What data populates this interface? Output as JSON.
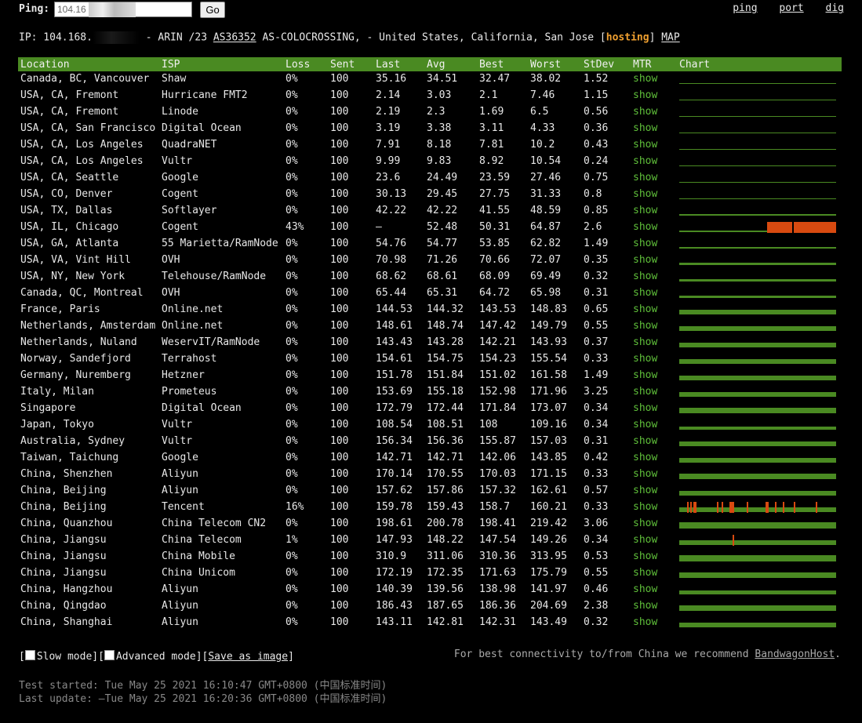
{
  "colors": {
    "bar": "#4a8a22",
    "loss": "#d84a10",
    "mtr": "#5fbf3a",
    "hosting": "#f0a030"
  },
  "top": {
    "ping_label": "Ping:",
    "ping_value": "104.16",
    "go_label": "Go",
    "links": [
      "ping",
      "port",
      "dig"
    ]
  },
  "ipinfo": {
    "prefix": "IP: 104.168.",
    "mid": " - ARIN /23 ",
    "asn": "AS36352",
    "rest": " AS-COLOCROSSING, - United States, California, San Jose [",
    "hosting": "hosting",
    "close": "] ",
    "map": "MAP"
  },
  "table": {
    "headers": [
      "Location",
      "ISP",
      "Loss",
      "Sent",
      "Last",
      "Avg",
      "Best",
      "Worst",
      "StDev",
      "MTR",
      "Chart"
    ],
    "mtr_label": "show",
    "rows": [
      {
        "loc": "Canada, BC, Vancouver",
        "isp": "Shaw",
        "loss": "0%",
        "sent": "100",
        "last": "35.16",
        "avg": "34.51",
        "best": "32.47",
        "worst": "38.02",
        "std": "1.52",
        "fill": 0.08,
        "spikes": []
      },
      {
        "loc": "USA, CA, Fremont",
        "isp": "Hurricane FMT2",
        "loss": "0%",
        "sent": "100",
        "last": "2.14",
        "avg": "3.03",
        "best": "2.1",
        "worst": "7.46",
        "std": "1.15",
        "fill": 0.02,
        "spikes": []
      },
      {
        "loc": "USA, CA, Fremont",
        "isp": "Linode",
        "loss": "0%",
        "sent": "100",
        "last": "2.19",
        "avg": "2.3",
        "best": "1.69",
        "worst": "6.5",
        "std": "0.56",
        "fill": 0.02,
        "spikes": []
      },
      {
        "loc": "USA, CA, San Francisco",
        "isp": "Digital Ocean",
        "loss": "0%",
        "sent": "100",
        "last": "3.19",
        "avg": "3.38",
        "best": "3.11",
        "worst": "4.33",
        "std": "0.36",
        "fill": 0.02,
        "spikes": []
      },
      {
        "loc": "USA, CA, Los Angeles",
        "isp": "QuadraNET",
        "loss": "0%",
        "sent": "100",
        "last": "7.91",
        "avg": "8.18",
        "best": "7.81",
        "worst": "10.2",
        "std": "0.43",
        "fill": 0.04,
        "spikes": []
      },
      {
        "loc": "USA, CA, Los Angeles",
        "isp": "Vultr",
        "loss": "0%",
        "sent": "100",
        "last": "9.99",
        "avg": "9.83",
        "best": "8.92",
        "worst": "10.54",
        "std": "0.24",
        "fill": 0.05,
        "spikes": []
      },
      {
        "loc": "USA, CA, Seattle",
        "isp": "Google",
        "loss": "0%",
        "sent": "100",
        "last": "23.6",
        "avg": "24.49",
        "best": "23.59",
        "worst": "27.46",
        "std": "0.75",
        "fill": 0.12,
        "spikes": []
      },
      {
        "loc": "USA, CO, Denver",
        "isp": "Cogent",
        "loss": "0%",
        "sent": "100",
        "last": "30.13",
        "avg": "29.45",
        "best": "27.75",
        "worst": "31.33",
        "std": "0.8",
        "fill": 0.14,
        "spikes": []
      },
      {
        "loc": "USA, TX, Dallas",
        "isp": "Softlayer",
        "loss": "0%",
        "sent": "100",
        "last": "42.22",
        "avg": "42.22",
        "best": "41.55",
        "worst": "48.59",
        "std": "0.85",
        "fill": 0.2,
        "spikes": []
      },
      {
        "loc": "USA, IL, Chicago",
        "isp": "Cogent",
        "loss": "43%",
        "sent": "100",
        "last": "–",
        "avg": "52.48",
        "best": "50.31",
        "worst": "64.87",
        "std": "2.6",
        "fill": 0.2,
        "spikes": [],
        "lossblock": [
          0.56,
          1.0
        ]
      },
      {
        "loc": "USA, GA, Atlanta",
        "isp": "55 Marietta/RamNode",
        "loss": "0%",
        "sent": "100",
        "last": "54.76",
        "avg": "54.77",
        "best": "53.85",
        "worst": "62.82",
        "std": "1.49",
        "fill": 0.26,
        "spikes": []
      },
      {
        "loc": "USA, VA, Vint Hill",
        "isp": "OVH",
        "loss": "0%",
        "sent": "100",
        "last": "70.98",
        "avg": "71.26",
        "best": "70.66",
        "worst": "72.07",
        "std": "0.35",
        "fill": 0.34,
        "spikes": []
      },
      {
        "loc": "USA, NY, New York",
        "isp": "Telehouse/RamNode",
        "loss": "0%",
        "sent": "100",
        "last": "68.62",
        "avg": "68.61",
        "best": "68.09",
        "worst": "69.49",
        "std": "0.32",
        "fill": 0.33,
        "spikes": []
      },
      {
        "loc": "Canada, QC, Montreal",
        "isp": "OVH",
        "loss": "0%",
        "sent": "100",
        "last": "65.44",
        "avg": "65.31",
        "best": "64.72",
        "worst": "65.98",
        "std": "0.31",
        "fill": 0.32,
        "spikes": []
      },
      {
        "loc": "France, Paris",
        "isp": "Online.net",
        "loss": "0%",
        "sent": "100",
        "last": "144.53",
        "avg": "144.32",
        "best": "143.53",
        "worst": "148.83",
        "std": "0.65",
        "fill": 0.7,
        "spikes": []
      },
      {
        "loc": "Netherlands, Amsterdam",
        "isp": "Online.net",
        "loss": "0%",
        "sent": "100",
        "last": "148.61",
        "avg": "148.74",
        "best": "147.42",
        "worst": "149.79",
        "std": "0.55",
        "fill": 0.72,
        "spikes": []
      },
      {
        "loc": "Netherlands, Nuland",
        "isp": "WeservIT/RamNode",
        "loss": "0%",
        "sent": "100",
        "last": "143.43",
        "avg": "143.28",
        "best": "142.21",
        "worst": "143.93",
        "std": "0.37",
        "fill": 0.7,
        "spikes": []
      },
      {
        "loc": "Norway, Sandefjord",
        "isp": "Terrahost",
        "loss": "0%",
        "sent": "100",
        "last": "154.61",
        "avg": "154.75",
        "best": "154.23",
        "worst": "155.54",
        "std": "0.33",
        "fill": 0.75,
        "spikes": []
      },
      {
        "loc": "Germany, Nuremberg",
        "isp": "Hetzner",
        "loss": "0%",
        "sent": "100",
        "last": "151.78",
        "avg": "151.84",
        "best": "151.02",
        "worst": "161.58",
        "std": "1.49",
        "fill": 0.74,
        "spikes": []
      },
      {
        "loc": "Italy, Milan",
        "isp": "Prometeus",
        "loss": "0%",
        "sent": "100",
        "last": "153.69",
        "avg": "155.18",
        "best": "152.98",
        "worst": "171.96",
        "std": "3.25",
        "fill": 0.75,
        "spikes": []
      },
      {
        "loc": "Singapore",
        "isp": "Digital Ocean",
        "loss": "0%",
        "sent": "100",
        "last": "172.79",
        "avg": "172.44",
        "best": "171.84",
        "worst": "173.07",
        "std": "0.34",
        "fill": 0.84,
        "spikes": []
      },
      {
        "loc": "Japan, Tokyo",
        "isp": "Vultr",
        "loss": "0%",
        "sent": "100",
        "last": "108.54",
        "avg": "108.51",
        "best": "108",
        "worst": "109.16",
        "std": "0.34",
        "fill": 0.53,
        "spikes": []
      },
      {
        "loc": "Australia, Sydney",
        "isp": "Vultr",
        "loss": "0%",
        "sent": "100",
        "last": "156.34",
        "avg": "156.36",
        "best": "155.87",
        "worst": "157.03",
        "std": "0.31",
        "fill": 0.76,
        "spikes": []
      },
      {
        "loc": "Taiwan, Taichung",
        "isp": "Google",
        "loss": "0%",
        "sent": "100",
        "last": "142.71",
        "avg": "142.71",
        "best": "142.06",
        "worst": "143.85",
        "std": "0.42",
        "fill": 0.7,
        "spikes": []
      },
      {
        "loc": "China, Shenzhen",
        "isp": "Aliyun",
        "loss": "0%",
        "sent": "100",
        "last": "170.14",
        "avg": "170.55",
        "best": "170.03",
        "worst": "171.15",
        "std": "0.33",
        "fill": 0.83,
        "spikes": []
      },
      {
        "loc": "China, Beijing",
        "isp": "Aliyun",
        "loss": "0%",
        "sent": "100",
        "last": "157.62",
        "avg": "157.86",
        "best": "157.32",
        "worst": "162.61",
        "std": "0.57",
        "fill": 0.77,
        "spikes": []
      },
      {
        "loc": "China, Beijing",
        "isp": "Tencent",
        "loss": "16%",
        "sent": "100",
        "last": "159.78",
        "avg": "159.43",
        "best": "158.7",
        "worst": "160.21",
        "std": "0.33",
        "fill": 0.78,
        "spikes": [
          0.05,
          0.07,
          0.09,
          0.1,
          0.24,
          0.27,
          0.32,
          0.33,
          0.34,
          0.43,
          0.55,
          0.56,
          0.61,
          0.66,
          0.73,
          0.87
        ]
      },
      {
        "loc": "China, Quanzhou",
        "isp": "China Telecom CN2",
        "loss": "0%",
        "sent": "100",
        "last": "198.61",
        "avg": "200.78",
        "best": "198.41",
        "worst": "219.42",
        "std": "3.06",
        "fill": 0.97,
        "spikes": []
      },
      {
        "loc": "China, Jiangsu",
        "isp": "China Telecom",
        "loss": "1%",
        "sent": "100",
        "last": "147.93",
        "avg": "148.22",
        "best": "147.54",
        "worst": "149.26",
        "std": "0.34",
        "fill": 0.72,
        "spikes": [
          0.34
        ]
      },
      {
        "loc": "China, Jiangsu",
        "isp": "China Mobile",
        "loss": "0%",
        "sent": "100",
        "last": "310.9",
        "avg": "311.06",
        "best": "310.36",
        "worst": "313.95",
        "std": "0.53",
        "fill": 1.0,
        "spikes": []
      },
      {
        "loc": "China, Jiangsu",
        "isp": "China Unicom",
        "loss": "0%",
        "sent": "100",
        "last": "172.19",
        "avg": "172.35",
        "best": "171.63",
        "worst": "175.79",
        "std": "0.55",
        "fill": 0.84,
        "spikes": []
      },
      {
        "loc": "China, Hangzhou",
        "isp": "Aliyun",
        "loss": "0%",
        "sent": "100",
        "last": "140.39",
        "avg": "139.56",
        "best": "138.98",
        "worst": "141.97",
        "std": "0.46",
        "fill": 0.68,
        "spikes": []
      },
      {
        "loc": "China, Qingdao",
        "isp": "Aliyun",
        "loss": "0%",
        "sent": "100",
        "last": "186.43",
        "avg": "187.65",
        "best": "186.36",
        "worst": "204.69",
        "std": "2.38",
        "fill": 0.91,
        "spikes": []
      },
      {
        "loc": "China, Shanghai",
        "isp": "Aliyun",
        "loss": "0%",
        "sent": "100",
        "last": "143.11",
        "avg": "142.81",
        "best": "142.31",
        "worst": "143.49",
        "std": "0.32",
        "fill": 0.7,
        "spikes": []
      }
    ]
  },
  "options": {
    "open1": "[",
    "slow": "Slow mode",
    "sep": "][",
    "advanced": "Advanced mode",
    "sep2": "][",
    "save": "Save as image",
    "close": "]"
  },
  "recommend": {
    "text": "For best connectivity to/from China we recommend ",
    "link": "BandwagonHost",
    "dot": "."
  },
  "footer": {
    "started": "Test started: Tue May 25 2021 16:10:47 GMT+0800 (中国标准时间)",
    "updated": "Last update: –Tue May 25 2021 16:20:36 GMT+0800 (中国标准时间)"
  }
}
